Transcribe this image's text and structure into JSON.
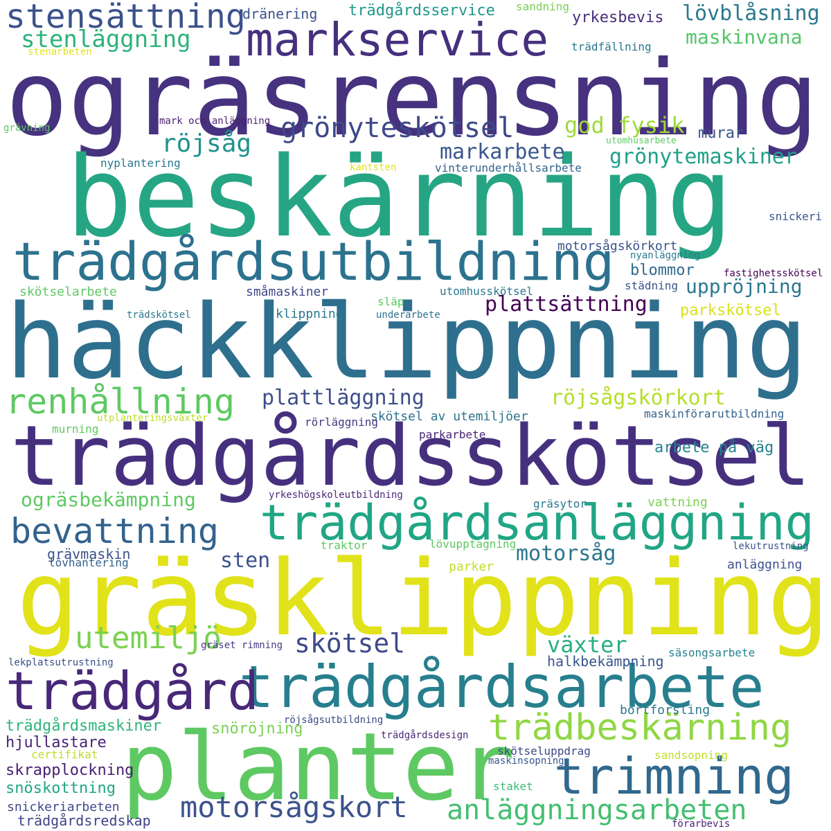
{
  "words": [
    {
      "text": "ogräsrensning",
      "color": "#46327e"
    },
    {
      "text": "beskärning",
      "color": "#26a584"
    },
    {
      "text": "häckklippning",
      "color": "#2e6f8e"
    },
    {
      "text": "trädgårdsskötsel",
      "color": "#46307e"
    },
    {
      "text": "gräsklippning",
      "color": "#e1e21a"
    },
    {
      "text": "planter",
      "color": "#5ec962"
    },
    {
      "text": "trädgårdsarbete",
      "color": "#277f8e"
    },
    {
      "text": "trädgårdsutbildning",
      "color": "#2c728e"
    },
    {
      "text": "trädgårdsanläggning",
      "color": "#21a685"
    },
    {
      "text": "markservice",
      "color": "#46307e"
    },
    {
      "text": "trädgård",
      "color": "#482878"
    },
    {
      "text": "trimning",
      "color": "#31688e"
    },
    {
      "text": "trädbeskärning",
      "color": "#8fd744"
    },
    {
      "text": "stensättning",
      "color": "#3b528b"
    },
    {
      "text": "bevattning",
      "color": "#33638d"
    },
    {
      "text": "renhållning",
      "color": "#5ec962"
    },
    {
      "text": "motorsågskort",
      "color": "#3b528b"
    },
    {
      "text": "anläggningsarbeten",
      "color": "#44bf70"
    },
    {
      "text": "grönyteskötsel",
      "color": "#3e4989"
    },
    {
      "text": "utemiljö",
      "color": "#7ad151"
    },
    {
      "text": "skötsel",
      "color": "#3e4989"
    },
    {
      "text": "stenläggning",
      "color": "#2db27d"
    },
    {
      "text": "lövblåsning",
      "color": "#2a788e"
    },
    {
      "text": "röjsåg",
      "color": "#21918c"
    },
    {
      "text": "god fysik",
      "color": "#a0da39"
    },
    {
      "text": "grönytemaskiner",
      "color": "#1fa088"
    },
    {
      "text": "markarbete",
      "color": "#39568c"
    },
    {
      "text": "maskinvana",
      "color": "#52c569"
    },
    {
      "text": "plattsättning",
      "color": "#440154"
    },
    {
      "text": "uppröjning",
      "color": "#2a788e"
    },
    {
      "text": "plattläggning",
      "color": "#3d4e8a"
    },
    {
      "text": "röjsågskörkort",
      "color": "#b5de2b"
    },
    {
      "text": "motorsåg",
      "color": "#2b758e"
    },
    {
      "text": "ogräsbekämpning",
      "color": "#5ec962"
    },
    {
      "text": "växter",
      "color": "#29af7f"
    },
    {
      "text": "sten",
      "color": "#3b528b"
    },
    {
      "text": "snöröjning",
      "color": "#7ad151"
    },
    {
      "text": "trädgårdsmaskiner",
      "color": "#2fb47c"
    },
    {
      "text": "skrapplockning",
      "color": "#481f70"
    },
    {
      "text": "snöskottning",
      "color": "#21a585"
    },
    {
      "text": "hjullastare",
      "color": "#482475"
    },
    {
      "text": "trädgårdsredskap",
      "color": "#414487"
    },
    {
      "text": "grävmaskin",
      "color": "#3b528b"
    },
    {
      "text": "blommor",
      "color": "#31688e"
    },
    {
      "text": "arbete på väg",
      "color": "#26828e"
    },
    {
      "text": "parkskötsel",
      "color": "#d8e219"
    },
    {
      "text": "murar",
      "color": "#39568c"
    },
    {
      "text": "yrkesbevis",
      "color": "#472d7b"
    },
    {
      "text": "trädgårdsservice",
      "color": "#1f988b"
    },
    {
      "text": "dränering",
      "color": "#3b528b"
    },
    {
      "text": "motorsågskörkort",
      "color": "#3b528b"
    },
    {
      "text": "småmaskiner",
      "color": "#3e4989"
    },
    {
      "text": "skötselarbete",
      "color": "#5ec962"
    },
    {
      "text": "klippning",
      "color": "#2a788e"
    },
    {
      "text": "halkbekämpning",
      "color": "#39568c"
    },
    {
      "text": "bortforsling",
      "color": "#2a788e"
    },
    {
      "text": "snickeriarbeten",
      "color": "#3e4989"
    },
    {
      "text": "skötsel av utemiljöer",
      "color": "#2c728e"
    },
    {
      "text": "maskinförarutbildning",
      "color": "#33638d"
    },
    {
      "text": "murning",
      "color": "#5ec962"
    },
    {
      "text": "rörläggning",
      "color": "#443983"
    },
    {
      "text": "parkarbete",
      "color": "#482475"
    },
    {
      "text": "lövhantering",
      "color": "#33638d"
    },
    {
      "text": "vattning",
      "color": "#7ad151"
    },
    {
      "text": "gräsytor",
      "color": "#2a788e"
    },
    {
      "text": "anläggning",
      "color": "#3b528b"
    },
    {
      "text": "parker",
      "color": "#c0df25"
    },
    {
      "text": "trädfällning",
      "color": "#2a788e"
    },
    {
      "text": "vinterunderhållsarbete",
      "color": "#33638d"
    },
    {
      "text": "nyplantering",
      "color": "#2a788e"
    },
    {
      "text": "mark och anläggning",
      "color": "#481f70"
    },
    {
      "text": "utomhusskötsel",
      "color": "#2a788e"
    },
    {
      "text": "städning",
      "color": "#3b528b"
    },
    {
      "text": "släp",
      "color": "#5ec962"
    },
    {
      "text": "underarbete",
      "color": "#2c728e"
    },
    {
      "text": "trädskötsel",
      "color": "#2a788e"
    },
    {
      "text": "fastighetsskötsel",
      "color": "#440154"
    },
    {
      "text": "nyanläggning",
      "color": "#2a788e"
    },
    {
      "text": "snickeri",
      "color": "#39568c"
    },
    {
      "text": "lekutrustning",
      "color": "#3b528b"
    },
    {
      "text": "traktor",
      "color": "#5ec962"
    },
    {
      "text": "lövupptagning",
      "color": "#5ec962"
    },
    {
      "text": "gräset rimning",
      "color": "#443983"
    },
    {
      "text": "säsongsarbete",
      "color": "#26828e"
    },
    {
      "text": "lekplatsutrustning",
      "color": "#3b528b"
    },
    {
      "text": "röjsågsutbildning",
      "color": "#3e4989"
    },
    {
      "text": "trädgårdsdesign",
      "color": "#482878"
    },
    {
      "text": "skötseluppdrag",
      "color": "#3e4989"
    },
    {
      "text": "maskinsopning",
      "color": "#39568c"
    },
    {
      "text": "sandsopning",
      "color": "#bddf26"
    },
    {
      "text": "förarbevis",
      "color": "#482475"
    },
    {
      "text": "staket",
      "color": "#3bbb75"
    },
    {
      "text": "certifikat",
      "color": "#bddf26"
    },
    {
      "text": "kantsten",
      "color": "#e1e21a"
    },
    {
      "text": "utomhusarbete",
      "color": "#5ec962"
    },
    {
      "text": "sandning",
      "color": "#7ad151"
    },
    {
      "text": "stenarbeten",
      "color": "#e1e21a"
    },
    {
      "text": "grävning",
      "color": "#5ec962"
    },
    {
      "text": "yrkeshögskoleutbildning",
      "color": "#482878"
    },
    {
      "text": "utplanteringsväxter",
      "color": "#bddf26"
    }
  ]
}
